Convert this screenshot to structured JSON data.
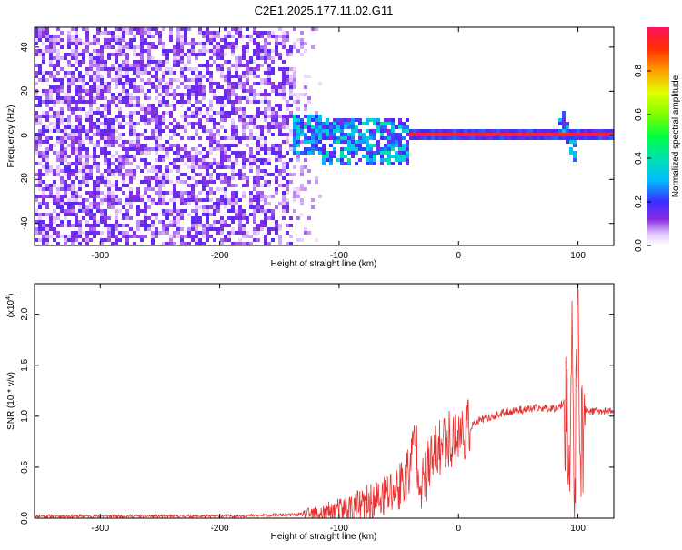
{
  "title": "C2E1.2025.177.11.02.G11",
  "chart_data": [
    {
      "type": "heatmap",
      "xlabel": "Height of straight line (km)",
      "ylabel": "Frequency (Hz)",
      "xlim": [
        -355,
        130
      ],
      "ylim": [
        -50,
        49
      ],
      "x_ticks": [
        -300,
        -200,
        -100,
        0,
        100
      ],
      "x_tick_labels": [
        "-300",
        "-200",
        "-100",
        "0",
        "100"
      ],
      "y_ticks": [
        -40,
        -20,
        0,
        20,
        40
      ],
      "y_tick_labels": [
        "-40",
        "-20",
        "0",
        "20",
        "40"
      ],
      "colorbar": {
        "label": "Normalized spectral amplitude",
        "range": [
          0,
          1
        ],
        "ticks": [
          0.0,
          0.2,
          0.4,
          0.6,
          0.8
        ],
        "tick_labels": [
          "0.0",
          "0.2",
          "0.4",
          "0.6",
          "0.8"
        ]
      },
      "regions": [
        {
          "x_range": [
            -355,
            -140
          ],
          "freq_range": [
            -50,
            49
          ],
          "amplitude": [
            0.05,
            0.15
          ],
          "pattern": "scattered noise"
        },
        {
          "x_range": [
            -140,
            -40
          ],
          "freq_range": [
            -15,
            10
          ],
          "amplitude": [
            0.15,
            0.4
          ],
          "pattern": "broadening near 0 Hz"
        },
        {
          "x_range": [
            -40,
            130
          ],
          "freq_range": [
            -1,
            1
          ],
          "amplitude": [
            0.9,
            1.0
          ],
          "pattern": "narrow line at 0 Hz"
        },
        {
          "x_range": [
            85,
            100
          ],
          "freq_range": [
            -12,
            17
          ],
          "amplitude": [
            0.1,
            0.3
          ],
          "pattern": "spread feature"
        }
      ],
      "grid": false
    },
    {
      "type": "line",
      "xlabel": "Height of straight line (km)",
      "ylabel": "SNR (10 * v/v)",
      "y_multiplier": "(x10⁴)",
      "y_multiplier_base": "(x10",
      "y_multiplier_exp": "4",
      "y_multiplier_close": ")",
      "xlim": [
        -355,
        130
      ],
      "ylim": [
        0,
        2.3
      ],
      "x_ticks": [
        -300,
        -200,
        -100,
        0,
        100
      ],
      "x_tick_labels": [
        "-300",
        "-200",
        "-100",
        "0",
        "100"
      ],
      "y_ticks": [
        0,
        0.5,
        1.0,
        1.5,
        2.0
      ],
      "y_tick_labels": [
        "0.0",
        "0.5",
        "1.0",
        "1.5",
        "2.0"
      ],
      "series": [
        {
          "color": "#e8312f",
          "x": [
            -355,
            -300,
            -250,
            -200,
            -150,
            -120,
            -100,
            -80,
            -70,
            -60,
            -50,
            -45,
            -40,
            -37,
            -33,
            -30,
            -25,
            -20,
            -15,
            -10,
            -5,
            0,
            10,
            20,
            30,
            40,
            50,
            60,
            70,
            80,
            85,
            90,
            93,
            95,
            97,
            100,
            103,
            106,
            110,
            120,
            130
          ],
          "y": [
            0.02,
            0.02,
            0.02,
            0.02,
            0.03,
            0.04,
            0.07,
            0.12,
            0.15,
            0.22,
            0.3,
            0.4,
            0.5,
            0.8,
            0.5,
            0.3,
            0.5,
            0.6,
            0.7,
            0.8,
            0.75,
            0.8,
            0.9,
            0.97,
            1.0,
            1.04,
            1.06,
            1.07,
            1.08,
            1.08,
            1.1,
            1.15,
            0.5,
            1.6,
            0.1,
            1.9,
            0.6,
            1.07,
            1.05,
            1.05,
            1.05
          ]
        }
      ],
      "grid": false
    }
  ]
}
